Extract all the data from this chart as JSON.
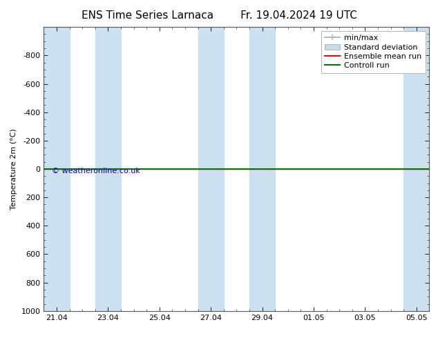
{
  "title_left": "ENS Time Series Larnaca",
  "title_right": "Fr. 19.04.2024 19 UTC",
  "ylabel": "Temperature 2m (°C)",
  "ylim_top": -1000,
  "ylim_bottom": 1000,
  "yticks": [
    -800,
    -600,
    -400,
    -200,
    0,
    200,
    400,
    600,
    800,
    1000
  ],
  "x_tick_labels": [
    "21.04",
    "23.04",
    "25.04",
    "27.04",
    "29.04",
    "01.05",
    "03.05",
    "05.05"
  ],
  "x_tick_positions": [
    0,
    2,
    4,
    6,
    8,
    10,
    12,
    14
  ],
  "xlim": [
    -0.5,
    14.5
  ],
  "shaded_columns": [
    {
      "x_start": -0.5,
      "x_end": 0.5
    },
    {
      "x_start": 1.5,
      "x_end": 2.5
    },
    {
      "x_start": 5.5,
      "x_end": 6.5
    },
    {
      "x_start": 7.5,
      "x_end": 8.5
    },
    {
      "x_start": 13.5,
      "x_end": 14.5
    }
  ],
  "line_y": 0,
  "green_line_color": "#007700",
  "red_line_color": "#ff0000",
  "shade_color": "#cce0f0",
  "watermark": "© weatheronline.co.uk",
  "watermark_color": "#0000bb",
  "background_color": "#ffffff",
  "legend_labels": [
    "min/max",
    "Standard deviation",
    "Ensemble mean run",
    "Controll run"
  ],
  "legend_colors": [
    "#aaccdd",
    "#c8dce8",
    "#ff0000",
    "#007700"
  ],
  "font_size_title": 11,
  "font_size_axis": 8,
  "font_size_legend": 8,
  "font_size_watermark": 8
}
